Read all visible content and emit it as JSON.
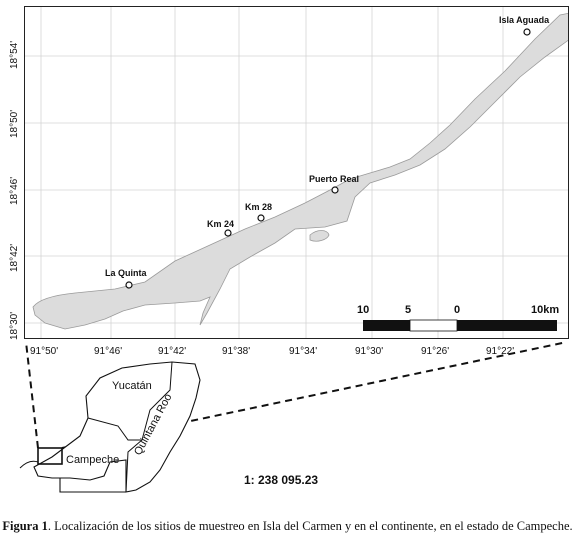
{
  "map": {
    "sites": [
      {
        "name": "Isla Aguada"
      },
      {
        "name": "Puerto Real"
      },
      {
        "name": "Km 28"
      },
      {
        "name": "Km 24"
      },
      {
        "name": "La Quinta"
      }
    ],
    "lat_ticks": [
      "18°54'",
      "18°50'",
      "18°46'",
      "18°42'",
      "18°30'"
    ],
    "lon_ticks": [
      "91°50'",
      "91°46'",
      "91°42'",
      "91°38'",
      "91°34'",
      "91°30'",
      "91°26'",
      "91°22'"
    ],
    "scale_bar": {
      "labels": [
        "10",
        "5",
        "0",
        "10km"
      ]
    }
  },
  "inset": {
    "labels": {
      "yucatan": "Yucatán",
      "quintana_roo": "Quintana Roo",
      "campeche": "Campeche"
    },
    "scale_ratio": "1: 238 095.23"
  },
  "caption": {
    "figure_label": "Figura 1",
    "text": ". Localización de los sitios de muestreo en Isla del Carmen y en el continente, en el estado de Campeche."
  }
}
